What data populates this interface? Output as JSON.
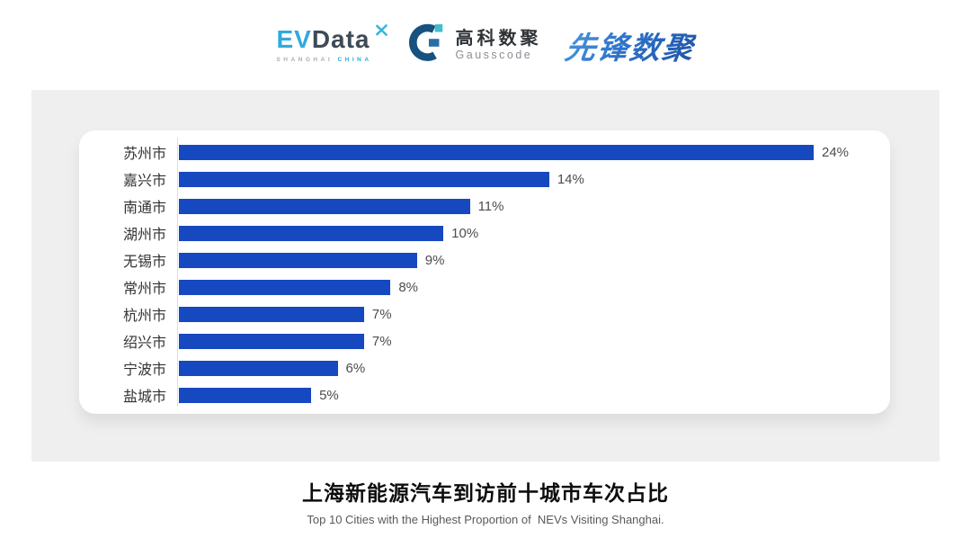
{
  "header": {
    "evdata": {
      "ev": "EV",
      "data": "Data",
      "tagline_left": "SHANGHAI",
      "tagline_right": "CHINA"
    },
    "gausscode": {
      "name_cn": "高科数聚",
      "name_en": "Gausscode"
    },
    "pioneer": {
      "name": "先锋数聚"
    }
  },
  "chart_data": {
    "type": "bar",
    "orientation": "horizontal",
    "title": "上海新能源汽车到访前十城市车次占比",
    "subtitle": "Top 10 Cities with the Highest Proportion of  NEVs Visiting Shanghai.",
    "categories": [
      "苏州市",
      "嘉兴市",
      "南通市",
      "湖州市",
      "无锡市",
      "常州市",
      "杭州市",
      "绍兴市",
      "宁波市",
      "盐城市"
    ],
    "values": [
      24,
      14,
      11,
      10,
      9,
      8,
      7,
      7,
      6,
      5
    ],
    "value_labels": [
      "24%",
      "14%",
      "11%",
      "10%",
      "9%",
      "8%",
      "7%",
      "7%",
      "6%",
      "5%"
    ],
    "xlim": [
      0,
      24
    ],
    "bar_color": "#1648C0",
    "grid": false,
    "legend": false,
    "value_label_position": "right-of-bar"
  },
  "footer": {
    "title": "上海新能源汽车到访前十城市车次占比",
    "subtitle": "Top 10 Cities with the Highest Proportion of  NEVs Visiting Shanghai."
  },
  "colors": {
    "bar": "#1648C0",
    "card_background": "#EFEFEF",
    "panel_background": "#FFFFFF",
    "axis_line": "#DFDFDF",
    "city_label": "#333333",
    "value_label": "#4D4D4D",
    "title": "#0D0D0D",
    "subtitle": "#595959",
    "evdata_cyan": "#2FAADE",
    "evdata_dark": "#3E4A56",
    "gausscode_navy": "#17517F",
    "gausscode_teal": "#43BCCB",
    "pioneer_blue": "#2E6FC4"
  }
}
